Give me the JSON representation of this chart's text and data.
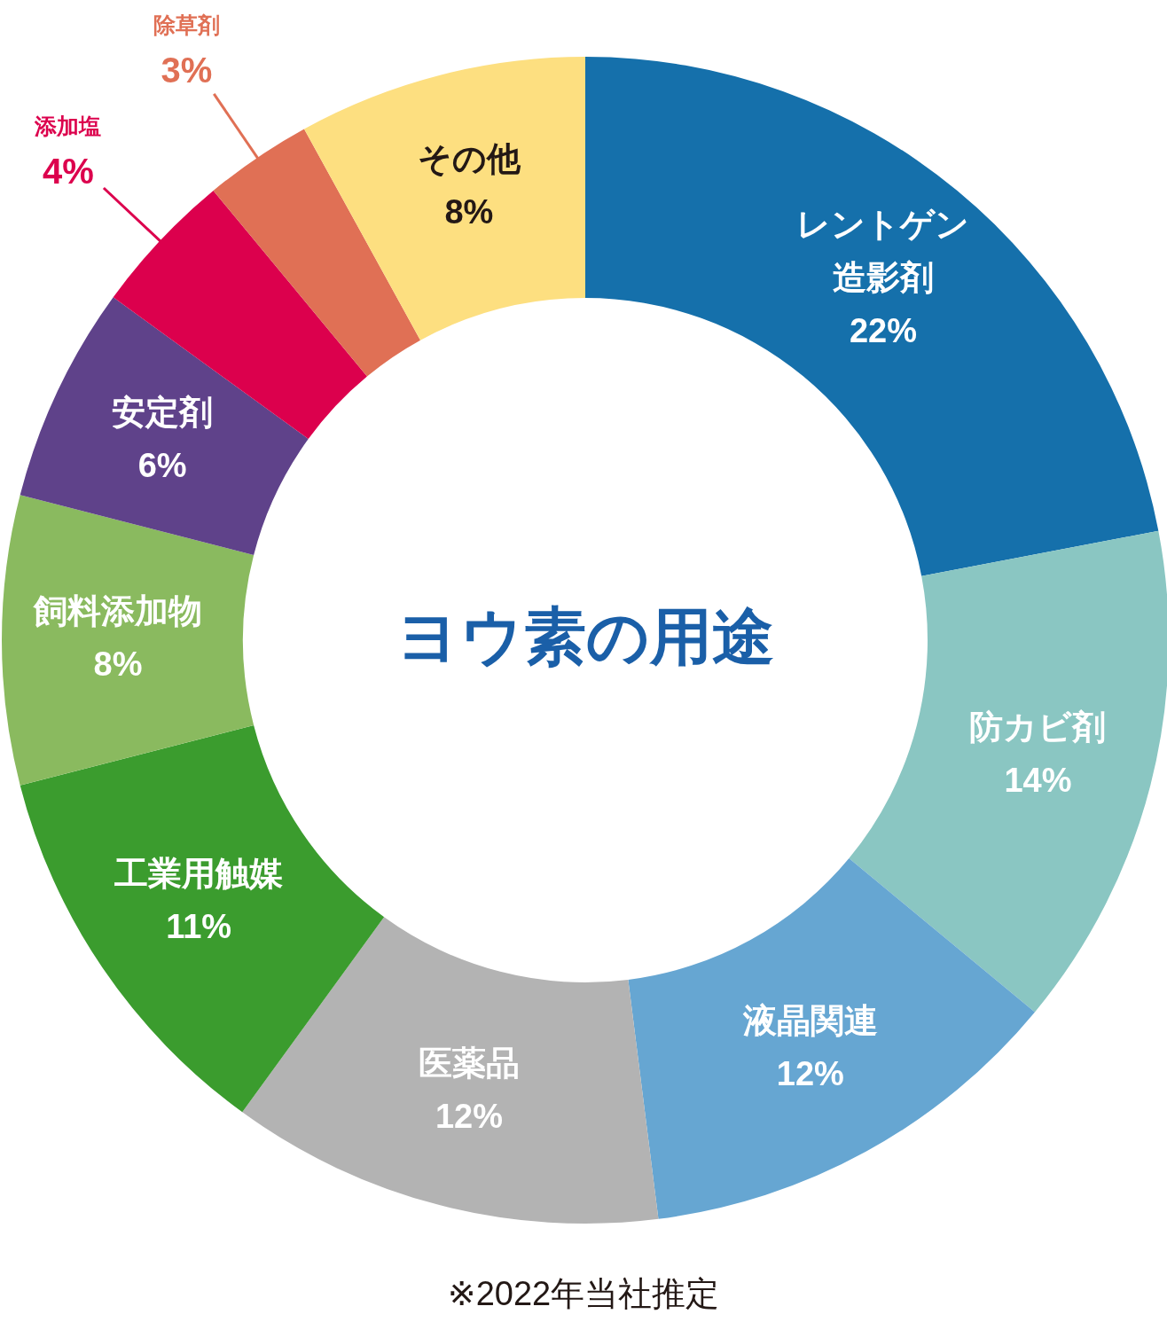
{
  "chart_data": {
    "type": "donut",
    "title": "ヨウ素の用途",
    "categories": [
      "レントゲン造影剤",
      "防カビ剤",
      "液晶関連",
      "医薬品",
      "工業用触媒",
      "飼料添加物",
      "安定剤",
      "添加塩",
      "除草剤",
      "その他"
    ],
    "values": [
      22,
      14,
      12,
      12,
      11,
      8,
      6,
      4,
      3,
      8
    ],
    "value_labels": [
      "22%",
      "14%",
      "12%",
      "12%",
      "11%",
      "8%",
      "6%",
      "4%",
      "3%",
      "8%"
    ],
    "colors": [
      "#1570ab",
      "#8ac6c2",
      "#66a6d2",
      "#b3b3b3",
      "#3b9c2e",
      "#8aba5f",
      "#5f428a",
      "#dc004d",
      "#e07055",
      "#fddf80"
    ],
    "annotations": [
      "※2022年当社推定"
    ]
  }
}
